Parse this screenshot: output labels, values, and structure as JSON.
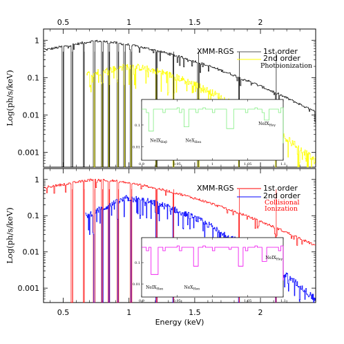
{
  "chart_data": [
    {
      "type": "line",
      "panel": "top",
      "ylabel": "Log(ph/s/keV)",
      "xlim": [
        0.35,
        2.42
      ],
      "ylim": [
        0.0004,
        2.0
      ],
      "yscale": "log",
      "top_ticks": [
        "0.5",
        "1",
        "1.5",
        "2"
      ],
      "y_ticks": [
        "0.001",
        "0.01",
        "0.1",
        "1"
      ],
      "legend": {
        "instrument": "XMM-RGS",
        "entries": [
          "1st order",
          "2nd order"
        ],
        "model": "Photoionization",
        "model_color": "#000000"
      },
      "series": [
        {
          "name": "1st order",
          "color": "#000000",
          "x_range": [
            0.36,
            2.42
          ],
          "y_start": 0.55,
          "y_peak": 0.95,
          "y_end": 0.012
        },
        {
          "name": "2nd order",
          "color": "#ffff00",
          "x_range": [
            0.68,
            2.42
          ],
          "y_start": 0.12,
          "y_peak": 0.2,
          "y_end": 0.0006
        }
      ],
      "absorption_lines_keV": [
        0.5,
        0.57,
        0.66,
        0.74,
        0.8,
        0.85,
        0.92,
        0.97,
        1.02,
        1.21,
        1.34,
        1.53,
        1.84,
        2.12
      ],
      "inset": {
        "xlim": [
          0.9,
          1.1
        ],
        "x_ticks": [
          "0.9",
          "0.95",
          "1",
          "1.05",
          "1.1"
        ],
        "y_ticks": [
          "0.1",
          "0.01"
        ],
        "color": "#80ee80",
        "annotations": [
          "NeIX",
          "NeX",
          "NeIX"
        ],
        "annotation_subs": [
          "Heβ",
          "Heα",
          "Heγ"
        ]
      }
    },
    {
      "type": "line",
      "panel": "bottom",
      "ylabel": "Log(ph/s/keV)",
      "xlabel": "Energy (keV)",
      "xlim": [
        0.35,
        2.42
      ],
      "ylim": [
        0.0004,
        2.0
      ],
      "yscale": "log",
      "x_ticks": [
        "0.5",
        "1",
        "1.5",
        "2"
      ],
      "y_ticks": [
        "0.001",
        "0.01",
        "0.1",
        "1"
      ],
      "legend": {
        "instrument": "XMM-RGS",
        "entries": [
          "1st order",
          "2nd order"
        ],
        "model_lines": [
          "Collisional",
          "Ionization"
        ],
        "model_color": "#ff0000"
      },
      "series": [
        {
          "name": "1st order",
          "color": "#ff0000",
          "x_range": [
            0.36,
            2.42
          ],
          "y_start": 0.6,
          "y_peak": 1.0,
          "y_end": 0.015
        },
        {
          "name": "2nd order",
          "color": "#0000ff",
          "x_range": [
            0.67,
            2.42
          ],
          "y_start": 0.1,
          "y_peak": 0.3,
          "y_end": 0.0005
        }
      ],
      "absorption_lines_keV": [
        0.57,
        0.66,
        0.74,
        0.8,
        0.85,
        0.92,
        1.02,
        1.21,
        1.34,
        1.84,
        2.12
      ],
      "inset": {
        "xlim": [
          0.9,
          1.1
        ],
        "x_ticks": [
          "0.9",
          "0.95",
          "1",
          "1.05",
          "1.1"
        ],
        "y_ticks": [
          "0.1",
          "0.01"
        ],
        "color": "#ee00ee",
        "annotations": [
          "NeIX",
          "NeX",
          "NeIX"
        ],
        "annotation_subs": [
          "Heα",
          "Heα",
          "Heγ"
        ]
      }
    }
  ]
}
